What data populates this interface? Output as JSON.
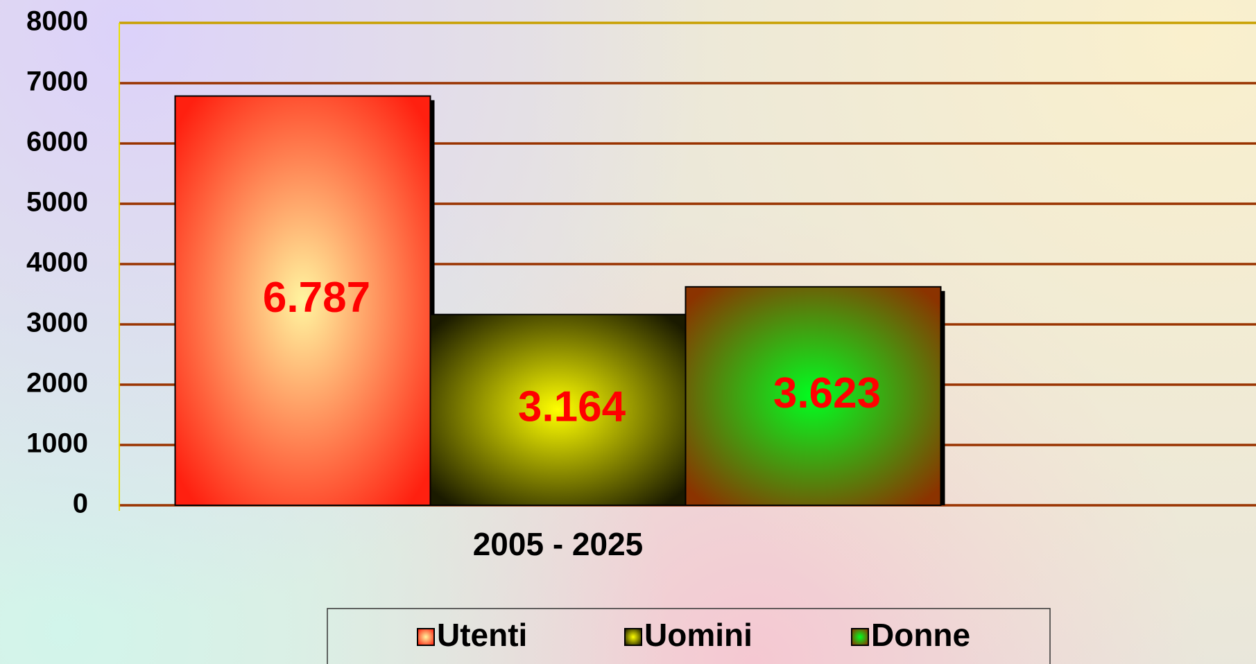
{
  "chart_data": {
    "type": "bar",
    "categories": [
      "2005 - 2025"
    ],
    "series": [
      {
        "name": "Utenti",
        "color": "#ff2010",
        "values": [
          6787
        ],
        "value_labels": [
          "6.787"
        ]
      },
      {
        "name": "Uomini",
        "color": "#1a1a00",
        "values": [
          3164
        ],
        "value_labels": [
          "3.164"
        ]
      },
      {
        "name": "Donne",
        "color": "#8b3300",
        "values": [
          3623
        ],
        "value_labels": [
          "3.623"
        ]
      }
    ],
    "ylim": [
      0,
      8000
    ],
    "yticks": [
      0,
      1000,
      2000,
      3000,
      4000,
      5000,
      6000,
      7000,
      8000
    ],
    "grid": true,
    "legend": "bottom"
  }
}
